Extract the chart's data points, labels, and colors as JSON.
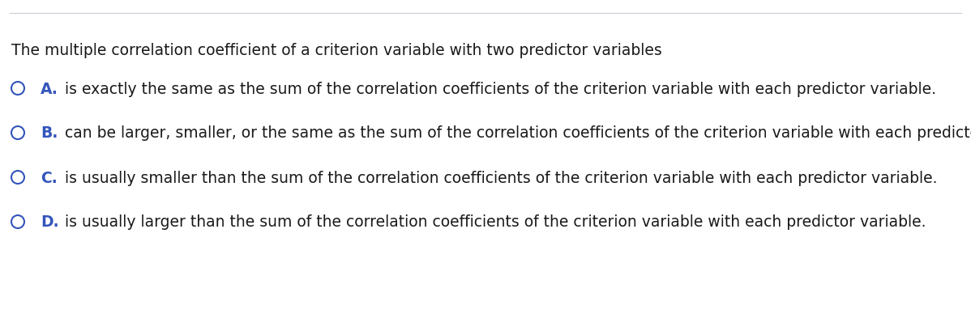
{
  "background_color": "#ffffff",
  "top_line_color": "#c8cdd4",
  "question_text": "The multiple correlation coefficient of a criterion variable with two predictor variables",
  "question_color": "#1a1a1a",
  "question_fontsize": 13.5,
  "options": [
    {
      "letter": "A.",
      "text": "is exactly the same as the sum of the correlation coefficients of the criterion variable with each predictor variable.",
      "letter_color": "#3355bb",
      "text_color": "#1a1a1a",
      "circle_color": "#3355bb"
    },
    {
      "letter": "B.",
      "text": "can be larger, smaller, or the same as the sum of the correlation coefficients of the criterion variable with each predictor variable.",
      "letter_color": "#3355bb",
      "text_color": "#1a1a1a",
      "circle_color": "#3355bb"
    },
    {
      "letter": "C.",
      "text": "is usually smaller than the sum of the correlation coefficients of the criterion variable with each predictor variable.",
      "letter_color": "#3355bb",
      "text_color": "#1a1a1a",
      "circle_color": "#3355bb"
    },
    {
      "letter": "D.",
      "text": "is usually larger than the sum of the correlation coefficients of the criterion variable with each predictor variable.",
      "letter_color": "#3355bb",
      "text_color": "#1a1a1a",
      "circle_color": "#3355bb"
    }
  ],
  "option_fontsize": 13.5,
  "fig_width": 11.98,
  "fig_height": 4.1,
  "dpi": 100
}
